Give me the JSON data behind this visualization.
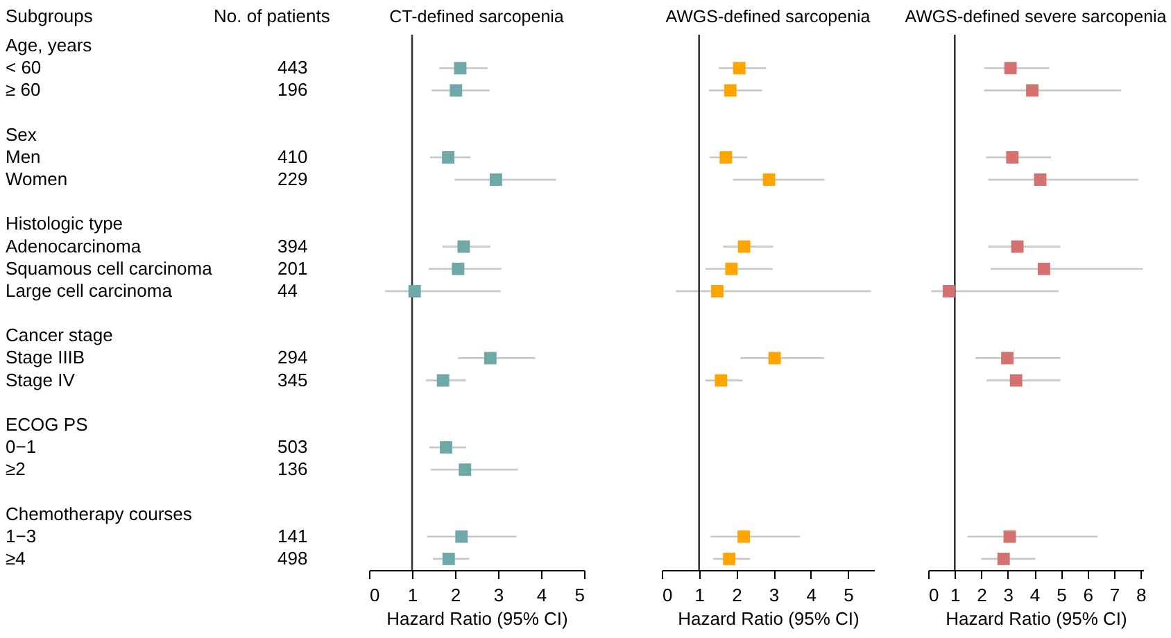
{
  "chart_data": [
    {
      "type": "other",
      "title": "Subgroups",
      "annotations": [
        "No. of patients"
      ],
      "data_labels": true,
      "categories": [
        "Age, years",
        "< 60",
        "≥ 60",
        null,
        "Sex",
        "Men",
        "Women",
        null,
        "Histologic type",
        "Adenocarcinoma",
        "Squamous cell carcinoma",
        "Large cell carcinoma",
        null,
        "Cancer stage",
        "Stage IIIB",
        "Stage IV",
        null,
        "ECOG PS",
        "0−1",
        "≥2",
        null,
        "Chemotherapy courses",
        "1−3",
        "≥4"
      ],
      "values": [
        null,
        443,
        196,
        null,
        null,
        410,
        229,
        null,
        null,
        394,
        201,
        44,
        null,
        null,
        294,
        345,
        null,
        null,
        503,
        136,
        null,
        null,
        141,
        498
      ]
    },
    {
      "type": "scatter",
      "orientation": "horizontal",
      "title": "CT-defined sarcopenia",
      "xlabel": "Hazard Ratio (95% CI)",
      "tick_labels": "x",
      "marker": "square",
      "color": "#6fa8a8",
      "categories": [
        null,
        null,
        null,
        null,
        null,
        null,
        null,
        null,
        null,
        null,
        null,
        null,
        null,
        null,
        null,
        null,
        null,
        null,
        null,
        null,
        null,
        null,
        null,
        null
      ],
      "values": [
        null,
        2.12,
        2.02,
        null,
        null,
        1.84,
        2.95,
        null,
        null,
        2.2,
        2.07,
        1.06,
        null,
        null,
        2.82,
        1.72,
        null,
        null,
        1.79,
        2.23,
        null,
        null,
        2.15,
        1.85
      ],
      "errors": [
        null,
        [
          1.63,
          2.76
        ],
        [
          1.46,
          2.8
        ],
        null,
        null,
        [
          1.42,
          2.36
        ],
        [
          1.99,
          4.35
        ],
        null,
        null,
        [
          1.71,
          2.82
        ],
        [
          1.39,
          3.08
        ],
        [
          0.37,
          3.06
        ],
        null,
        null,
        [
          2.07,
          3.86
        ],
        [
          1.32,
          2.25
        ],
        null,
        null,
        [
          1.4,
          2.26
        ],
        [
          1.43,
          3.46
        ],
        null,
        null,
        [
          1.35,
          3.43
        ],
        [
          1.48,
          2.33
        ]
      ],
      "xlim": [
        0,
        5
      ],
      "xticks": [
        0,
        1,
        2,
        3,
        4,
        5
      ],
      "ref_lines": [
        {
          "axis": "x",
          "value": 1
        }
      ]
    },
    {
      "type": "scatter",
      "orientation": "horizontal",
      "title": "AWGS-defined sarcopenia",
      "xlabel": "Hazard Ratio (95% CI)",
      "tick_labels": "x",
      "marker": "square",
      "color": "#ffa500",
      "categories": [
        null,
        null,
        null,
        null,
        null,
        null,
        null,
        null,
        null,
        null,
        null,
        null,
        null,
        null,
        null,
        null,
        null,
        null,
        null,
        null,
        null,
        null,
        null,
        null
      ],
      "values": [
        null,
        2.08,
        1.84,
        null,
        null,
        1.72,
        2.88,
        null,
        null,
        2.21,
        1.87,
        1.49,
        null,
        null,
        3.03,
        1.59,
        null,
        null,
        null,
        null,
        null,
        null,
        2.2,
        1.81
      ],
      "errors": [
        null,
        [
          1.53,
          2.8
        ],
        [
          1.27,
          2.69
        ],
        null,
        null,
        [
          1.29,
          2.29
        ],
        [
          1.91,
          4.37
        ],
        null,
        null,
        [
          1.65,
          2.99
        ],
        [
          1.17,
          2.97
        ],
        [
          0.38,
          5.62
        ],
        null,
        null,
        [
          2.11,
          4.36
        ],
        [
          1.17,
          2.17
        ],
        null,
        null,
        null,
        null,
        null,
        null,
        [
          1.31,
          3.71
        ],
        [
          1.38,
          2.37
        ]
      ],
      "xlim": [
        0,
        5.7
      ],
      "xticks": [
        0,
        1,
        2,
        3,
        4,
        5
      ],
      "ref_lines": [
        {
          "axis": "x",
          "value": 1
        }
      ]
    },
    {
      "type": "scatter",
      "orientation": "horizontal",
      "title": "AWGS-defined severe sarcopenia",
      "xlabel": "Hazard Ratio (95% CI)",
      "tick_labels": "x",
      "marker": "square",
      "color": "#d47272",
      "categories": [
        null,
        null,
        null,
        null,
        null,
        null,
        null,
        null,
        null,
        null,
        null,
        null,
        null,
        null,
        null,
        null,
        null,
        null,
        null,
        null,
        null,
        null,
        null,
        null
      ],
      "values": [
        null,
        3.1,
        3.92,
        null,
        null,
        3.17,
        4.22,
        null,
        null,
        3.36,
        4.36,
        0.78,
        null,
        null,
        2.98,
        3.31,
        null,
        null,
        null,
        null,
        null,
        null,
        3.07,
        2.84
      ],
      "errors": [
        null,
        [
          2.11,
          4.56
        ],
        [
          2.11,
          7.26
        ],
        null,
        null,
        [
          2.18,
          4.63
        ],
        [
          2.26,
          7.91
        ],
        null,
        null,
        [
          2.26,
          4.98
        ],
        [
          2.35,
          8.08
        ],
        [
          0.12,
          4.91
        ],
        null,
        null,
        [
          1.78,
          4.98
        ],
        [
          2.2,
          4.98
        ],
        null,
        null,
        null,
        null,
        null,
        null,
        [
          1.48,
          6.38
        ],
        [
          2.0,
          4.04
        ]
      ],
      "xlim": [
        0,
        8.1
      ],
      "xticks": [
        0,
        1,
        2,
        3,
        4,
        5,
        6,
        7,
        8
      ],
      "ref_lines": [
        {
          "axis": "x",
          "value": 1
        }
      ]
    }
  ]
}
